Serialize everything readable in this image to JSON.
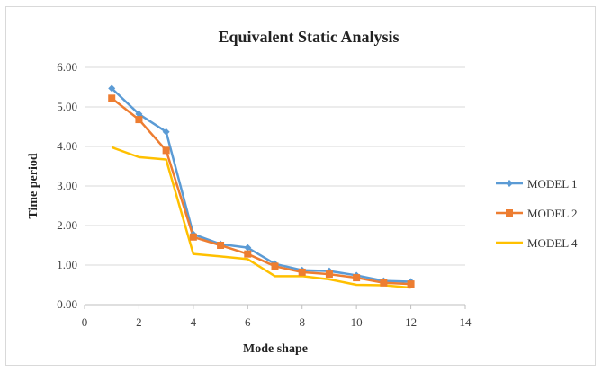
{
  "chart_data": {
    "type": "line",
    "title": "Equivalent Static Analysis",
    "xlabel": "Mode shape",
    "ylabel": "Time period",
    "xlim": [
      0,
      14
    ],
    "ylim": [
      0,
      6
    ],
    "x_ticks": [
      "0",
      "2",
      "4",
      "6",
      "8",
      "10",
      "12",
      "14"
    ],
    "y_ticks": [
      "0.00",
      "1.00",
      "2.00",
      "3.00",
      "4.00",
      "5.00",
      "6.00"
    ],
    "x": [
      1,
      2,
      3,
      4,
      5,
      6,
      7,
      8,
      9,
      10,
      11,
      12
    ],
    "grid": "horizontal",
    "legend_position": "right",
    "series": [
      {
        "name": "MODEL 1",
        "color": "#5B9BD5",
        "marker": "diamond",
        "values": [
          5.47,
          4.82,
          4.37,
          1.78,
          1.53,
          1.44,
          1.03,
          0.87,
          0.85,
          0.74,
          0.6,
          0.58
        ]
      },
      {
        "name": "MODEL 2",
        "color": "#ED7D31",
        "marker": "square",
        "values": [
          5.22,
          4.68,
          3.9,
          1.71,
          1.5,
          1.28,
          0.97,
          0.82,
          0.77,
          0.68,
          0.55,
          0.52
        ]
      },
      {
        "name": "MODEL 4",
        "color": "#FFC000",
        "marker": "none",
        "values": [
          3.98,
          3.73,
          3.67,
          1.28,
          1.22,
          1.15,
          0.72,
          0.72,
          0.64,
          0.5,
          0.49,
          0.43
        ]
      }
    ]
  }
}
